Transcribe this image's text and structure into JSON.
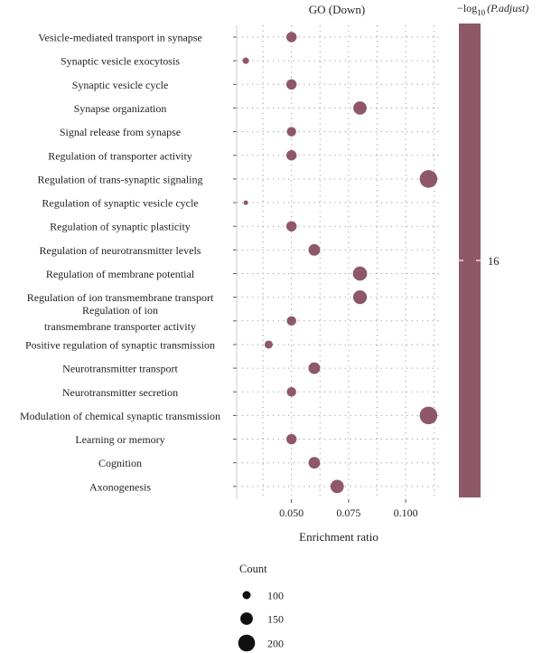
{
  "chart_data": {
    "type": "scatter",
    "title": "GO (Down)",
    "xlabel": "Enrichment ratio",
    "ylabel": "",
    "xlim": [
      0.026,
      0.115
    ],
    "xticks": [
      0.05,
      0.075,
      0.1
    ],
    "xtick_labels": [
      "0.050",
      "0.075",
      "0.100"
    ],
    "grid": true,
    "point_color": "#8e5868",
    "categories": [
      "Vesicle-mediated transport in synapse",
      "Synaptic vesicle exocytosis",
      "Synaptic vesicle cycle",
      "Synapse organization",
      "Signal release from synapse",
      "Regulation of transporter activity",
      "Regulation of trans-synaptic signaling",
      "Regulation of synaptic vesicle cycle",
      "Regulation of synaptic plasticity",
      "Regulation of neurotransmitter levels",
      "Regulation of membrane potential",
      "Regulation of ion transmembrane transport",
      "Regulation of ion transmembrane transporter activity",
      "Positive regulation of synaptic transmission",
      "Neurotransmitter transport",
      "Neurotransmitter secretion",
      "Modulation of chemical synaptic transmission",
      "Learning or memory",
      "Cognition",
      "Axonogenesis"
    ],
    "category_lines": [
      [
        "Vesicle-mediated transport in synapse"
      ],
      [
        "Synaptic vesicle exocytosis"
      ],
      [
        "Synaptic vesicle cycle"
      ],
      [
        "Synapse organization"
      ],
      [
        "Signal release from synapse"
      ],
      [
        "Regulation of transporter activity"
      ],
      [
        "Regulation of trans-synaptic signaling"
      ],
      [
        "Regulation of synaptic vesicle cycle"
      ],
      [
        "Regulation of synaptic plasticity"
      ],
      [
        "Regulation of neurotransmitter levels"
      ],
      [
        "Regulation of membrane potential"
      ],
      [
        "Regulation of ion transmembrane transport"
      ],
      [
        "Regulation of ion",
        "transmembrane transporter activity"
      ],
      [
        "Positive regulation of synaptic transmission"
      ],
      [
        "Neurotransmitter transport"
      ],
      [
        "Neurotransmitter secretion"
      ],
      [
        "Modulation of chemical synaptic transmission"
      ],
      [
        "Learning or memory"
      ],
      [
        "Cognition"
      ],
      [
        "Axonogenesis"
      ]
    ],
    "x": [
      0.05,
      0.03,
      0.05,
      0.08,
      0.05,
      0.05,
      0.11,
      0.03,
      0.05,
      0.06,
      0.08,
      0.08,
      0.05,
      0.04,
      0.06,
      0.05,
      0.11,
      0.05,
      0.06,
      0.07
    ],
    "count": [
      125,
      80,
      125,
      160,
      115,
      125,
      210,
      60,
      125,
      140,
      170,
      165,
      115,
      100,
      140,
      115,
      210,
      125,
      140,
      160
    ],
    "size_legend": {
      "title": "Count",
      "values": [
        100,
        150,
        200
      ],
      "labels": [
        "100",
        "150",
        "200"
      ]
    },
    "colorbar": {
      "title_prefix": "−log",
      "title_sub": "10",
      "title_suffix": "(P.adjust)",
      "tick_label": "16",
      "color": "#8e5868"
    }
  }
}
